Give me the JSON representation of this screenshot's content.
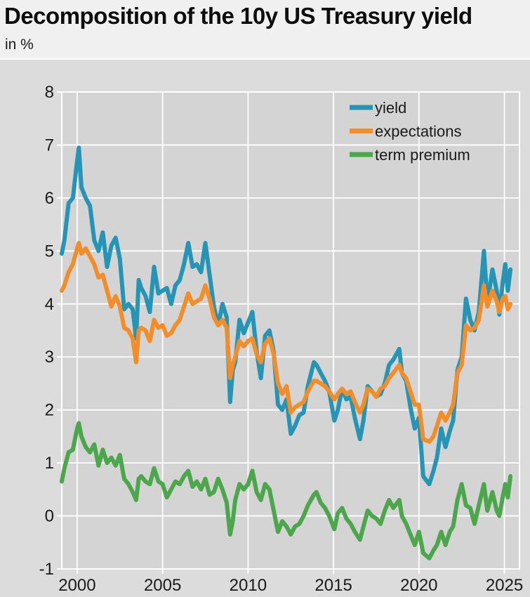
{
  "header": {
    "title": "Decomposition of the 10y US Treasury yield",
    "subtitle": "in %"
  },
  "colors": {
    "figure_background": "#dcdcdc",
    "header_background": "#f0f0f0",
    "panel_background": "#d4d4d4",
    "gridline": "#ffffff",
    "tick_text": "#1a1a1a",
    "yield_line": "#2695b5",
    "expectations_line": "#f28d2a",
    "term_premium_line": "#4ca64c"
  },
  "chart_data": {
    "type": "line",
    "title": "Decomposition of the 10y US Treasury yield",
    "unit_label": "in %",
    "grid": true,
    "legend_position": "upper right",
    "legend_entries": [
      "yield",
      "expectations",
      "term premium"
    ],
    "x_ticks": [
      2000,
      2005,
      2010,
      2015,
      2020,
      2025
    ],
    "y_ticks": [
      -1,
      0,
      1,
      2,
      3,
      4,
      5,
      6,
      7,
      8
    ],
    "x_range": [
      1999.1,
      2025.88
    ],
    "y_range": [
      -1,
      8
    ],
    "x": [
      1999.1,
      1999.25,
      1999.5,
      1999.75,
      2000.0,
      2000.1,
      2000.25,
      2000.5,
      2000.75,
      2001.0,
      2001.25,
      2001.5,
      2001.75,
      2002.0,
      2002.25,
      2002.5,
      2002.75,
      2003.0,
      2003.25,
      2003.45,
      2003.6,
      2003.75,
      2004.0,
      2004.25,
      2004.5,
      2004.75,
      2005.0,
      2005.25,
      2005.5,
      2005.75,
      2006.0,
      2006.25,
      2006.5,
      2006.75,
      2007.0,
      2007.25,
      2007.5,
      2007.75,
      2008.0,
      2008.25,
      2008.5,
      2008.75,
      2008.95,
      2009.1,
      2009.25,
      2009.5,
      2009.75,
      2010.0,
      2010.25,
      2010.5,
      2010.75,
      2011.0,
      2011.25,
      2011.5,
      2011.75,
      2012.0,
      2012.25,
      2012.5,
      2012.75,
      2013.0,
      2013.25,
      2013.5,
      2013.85,
      2014.0,
      2014.25,
      2014.5,
      2014.75,
      2015.05,
      2015.25,
      2015.5,
      2015.75,
      2016.0,
      2016.25,
      2016.55,
      2016.75,
      2017.0,
      2017.25,
      2017.5,
      2017.75,
      2018.0,
      2018.25,
      2018.5,
      2018.85,
      2019.0,
      2019.25,
      2019.5,
      2019.75,
      2020.0,
      2020.25,
      2020.6,
      2020.85,
      2021.05,
      2021.3,
      2021.55,
      2021.8,
      2022.0,
      2022.25,
      2022.5,
      2022.75,
      2023.0,
      2023.25,
      2023.5,
      2023.8,
      2024.0,
      2024.3,
      2024.55,
      2024.7,
      2024.9,
      2025.05,
      2025.2,
      2025.35
    ],
    "series": [
      {
        "name": "yield",
        "color": "#2695b5",
        "values": [
          4.95,
          5.2,
          5.9,
          6.0,
          6.7,
          6.95,
          6.2,
          6.0,
          5.85,
          5.2,
          5.0,
          5.35,
          4.7,
          5.1,
          5.25,
          4.85,
          3.9,
          4.0,
          3.9,
          3.35,
          4.45,
          4.3,
          4.15,
          3.85,
          4.7,
          4.2,
          4.25,
          4.3,
          4.0,
          4.35,
          4.45,
          4.75,
          5.15,
          4.7,
          4.75,
          4.6,
          5.15,
          4.55,
          3.95,
          3.6,
          4.0,
          3.75,
          2.15,
          2.75,
          2.9,
          3.7,
          3.45,
          3.65,
          3.85,
          3.1,
          2.6,
          3.4,
          3.5,
          3.1,
          2.1,
          2.0,
          2.2,
          1.55,
          1.7,
          1.9,
          1.95,
          2.45,
          2.9,
          2.85,
          2.7,
          2.55,
          2.35,
          1.8,
          2.0,
          2.4,
          2.2,
          2.25,
          1.85,
          1.45,
          1.8,
          2.45,
          2.35,
          2.25,
          2.3,
          2.5,
          2.85,
          2.95,
          3.15,
          2.7,
          2.55,
          2.05,
          1.65,
          1.85,
          0.75,
          0.6,
          0.85,
          1.1,
          1.65,
          1.3,
          1.6,
          1.8,
          2.75,
          3.0,
          4.1,
          3.7,
          3.5,
          3.85,
          5.0,
          4.0,
          4.65,
          4.25,
          3.8,
          4.4,
          4.75,
          4.25,
          4.65
        ]
      },
      {
        "name": "expectations",
        "color": "#f28d2a",
        "values": [
          4.25,
          4.35,
          4.6,
          4.75,
          5.05,
          5.15,
          4.95,
          5.05,
          4.9,
          4.75,
          4.5,
          4.55,
          4.25,
          3.95,
          4.15,
          3.95,
          3.55,
          3.5,
          3.35,
          2.9,
          3.5,
          3.55,
          3.5,
          3.3,
          3.7,
          3.55,
          3.6,
          3.4,
          3.45,
          3.6,
          3.7,
          3.95,
          4.2,
          4.0,
          4.05,
          4.1,
          4.35,
          4.1,
          3.75,
          3.6,
          3.7,
          3.55,
          2.6,
          2.85,
          3.0,
          3.3,
          3.2,
          3.3,
          3.35,
          3.05,
          2.9,
          3.25,
          3.35,
          3.05,
          2.5,
          2.3,
          2.45,
          1.95,
          2.05,
          2.1,
          2.15,
          2.35,
          2.55,
          2.55,
          2.5,
          2.45,
          2.35,
          2.2,
          2.3,
          2.4,
          2.3,
          2.35,
          2.15,
          1.95,
          2.1,
          2.4,
          2.35,
          2.25,
          2.4,
          2.45,
          2.6,
          2.7,
          2.85,
          2.7,
          2.6,
          2.35,
          2.1,
          2.1,
          1.45,
          1.4,
          1.5,
          1.7,
          1.95,
          1.8,
          1.95,
          2.1,
          2.7,
          2.85,
          3.6,
          3.5,
          3.55,
          3.7,
          4.35,
          3.95,
          4.25,
          4.05,
          3.85,
          4.1,
          4.15,
          3.9,
          4.0
        ]
      },
      {
        "name": "term premium",
        "color": "#4ca64c",
        "values": [
          0.65,
          0.9,
          1.2,
          1.25,
          1.65,
          1.75,
          1.5,
          1.3,
          1.2,
          1.35,
          0.95,
          1.25,
          1.0,
          1.1,
          0.95,
          1.15,
          0.7,
          0.6,
          0.45,
          0.3,
          0.7,
          0.75,
          0.65,
          0.6,
          0.9,
          0.65,
          0.6,
          0.35,
          0.5,
          0.65,
          0.6,
          0.75,
          0.85,
          0.55,
          0.65,
          0.5,
          0.7,
          0.4,
          0.45,
          0.7,
          0.5,
          0.25,
          -0.35,
          -0.1,
          0.3,
          0.6,
          0.5,
          0.6,
          0.85,
          0.45,
          0.3,
          0.6,
          0.5,
          0.1,
          -0.3,
          -0.1,
          -0.2,
          -0.35,
          -0.2,
          -0.15,
          0.0,
          0.2,
          0.4,
          0.45,
          0.25,
          0.15,
          0.0,
          -0.25,
          0.05,
          0.15,
          -0.05,
          -0.15,
          -0.3,
          -0.45,
          -0.2,
          0.1,
          0.0,
          -0.05,
          -0.15,
          0.1,
          0.3,
          0.15,
          0.3,
          0.0,
          -0.15,
          -0.35,
          -0.55,
          -0.3,
          -0.7,
          -0.8,
          -0.65,
          -0.55,
          -0.3,
          -0.55,
          -0.3,
          -0.2,
          0.3,
          0.6,
          0.2,
          0.15,
          -0.15,
          0.2,
          0.6,
          0.1,
          0.45,
          0.1,
          0.0,
          0.35,
          0.6,
          0.35,
          0.75
        ]
      }
    ]
  }
}
